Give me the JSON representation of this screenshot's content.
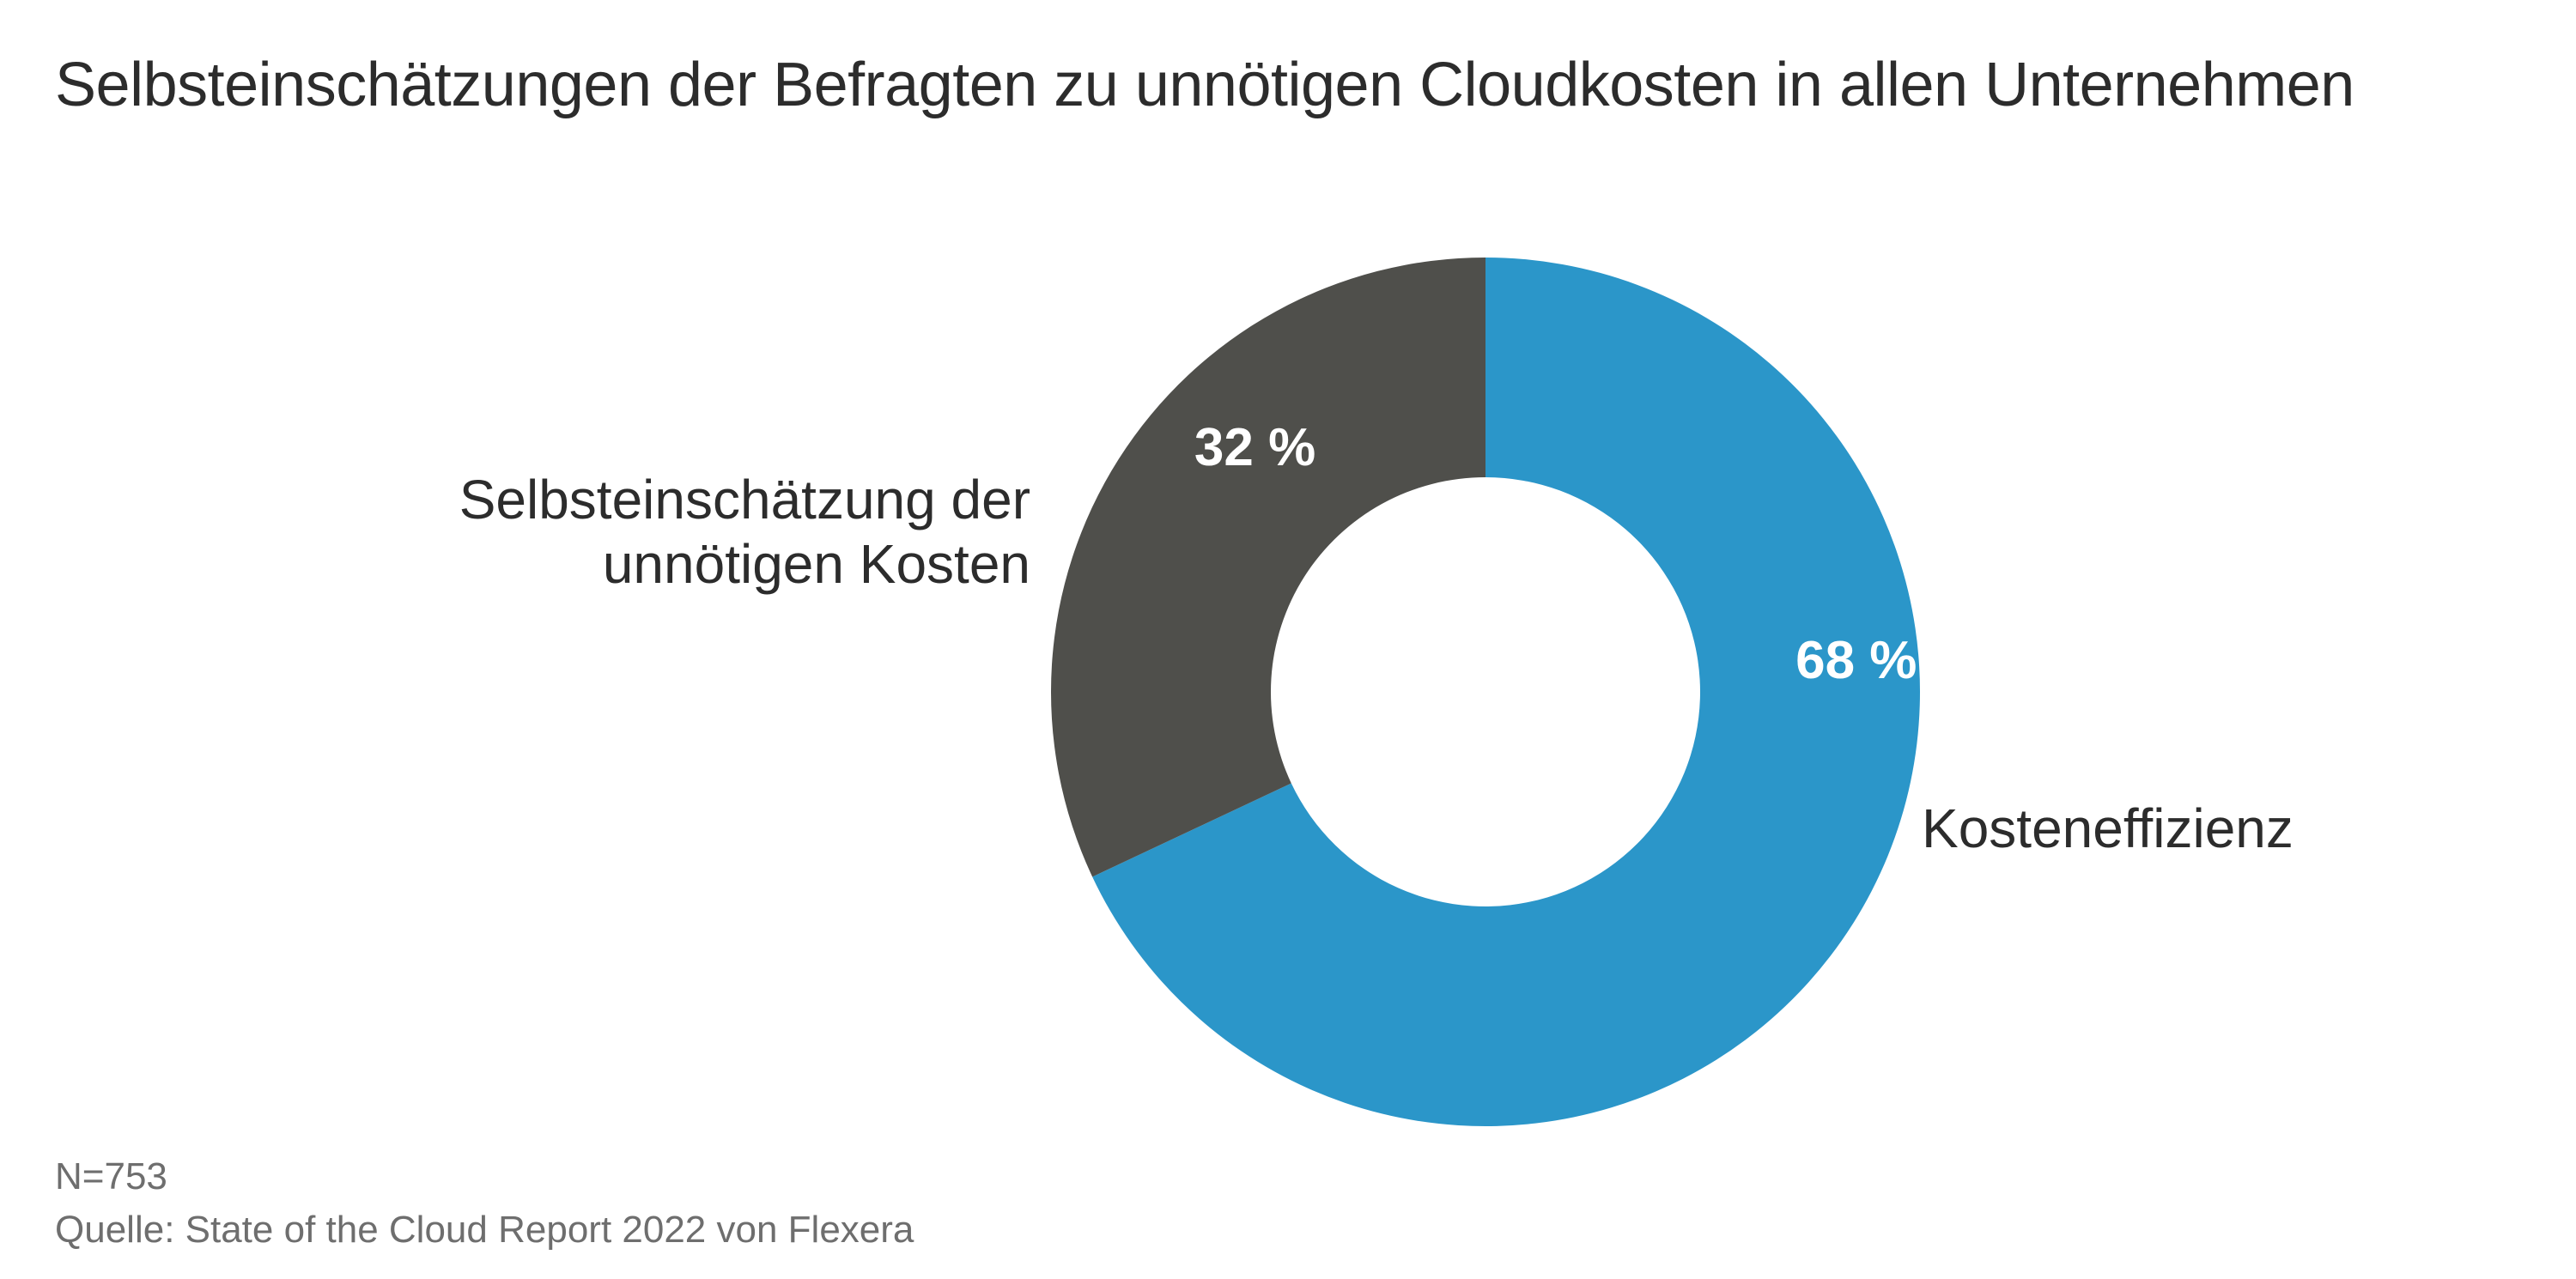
{
  "title": "Selbsteinschätzungen der Befragten zu unnötigen Cloudkosten in allen Unternehmen",
  "chart_data": {
    "type": "pie",
    "donut": true,
    "title": "Selbsteinschätzungen der Befragten zu unnötigen Cloudkosten in allen Unternehmen",
    "slices": [
      {
        "label": "Kosteneffizienz",
        "value": 68,
        "value_label": "68 %",
        "color": "#2b96c9"
      },
      {
        "label_lines": [
          "Selbsteinschätzung der",
          "unnötigen Kosten"
        ],
        "value": 32,
        "value_label": "32 %",
        "color": "#4f4f4b"
      }
    ],
    "start_angle": "12 o'clock",
    "direction": "clockwise",
    "value_label_color": "#ffffff"
  },
  "footer": {
    "sample": "N=753",
    "source": "Quelle: State of the Cloud Report 2022 von Flexera"
  }
}
